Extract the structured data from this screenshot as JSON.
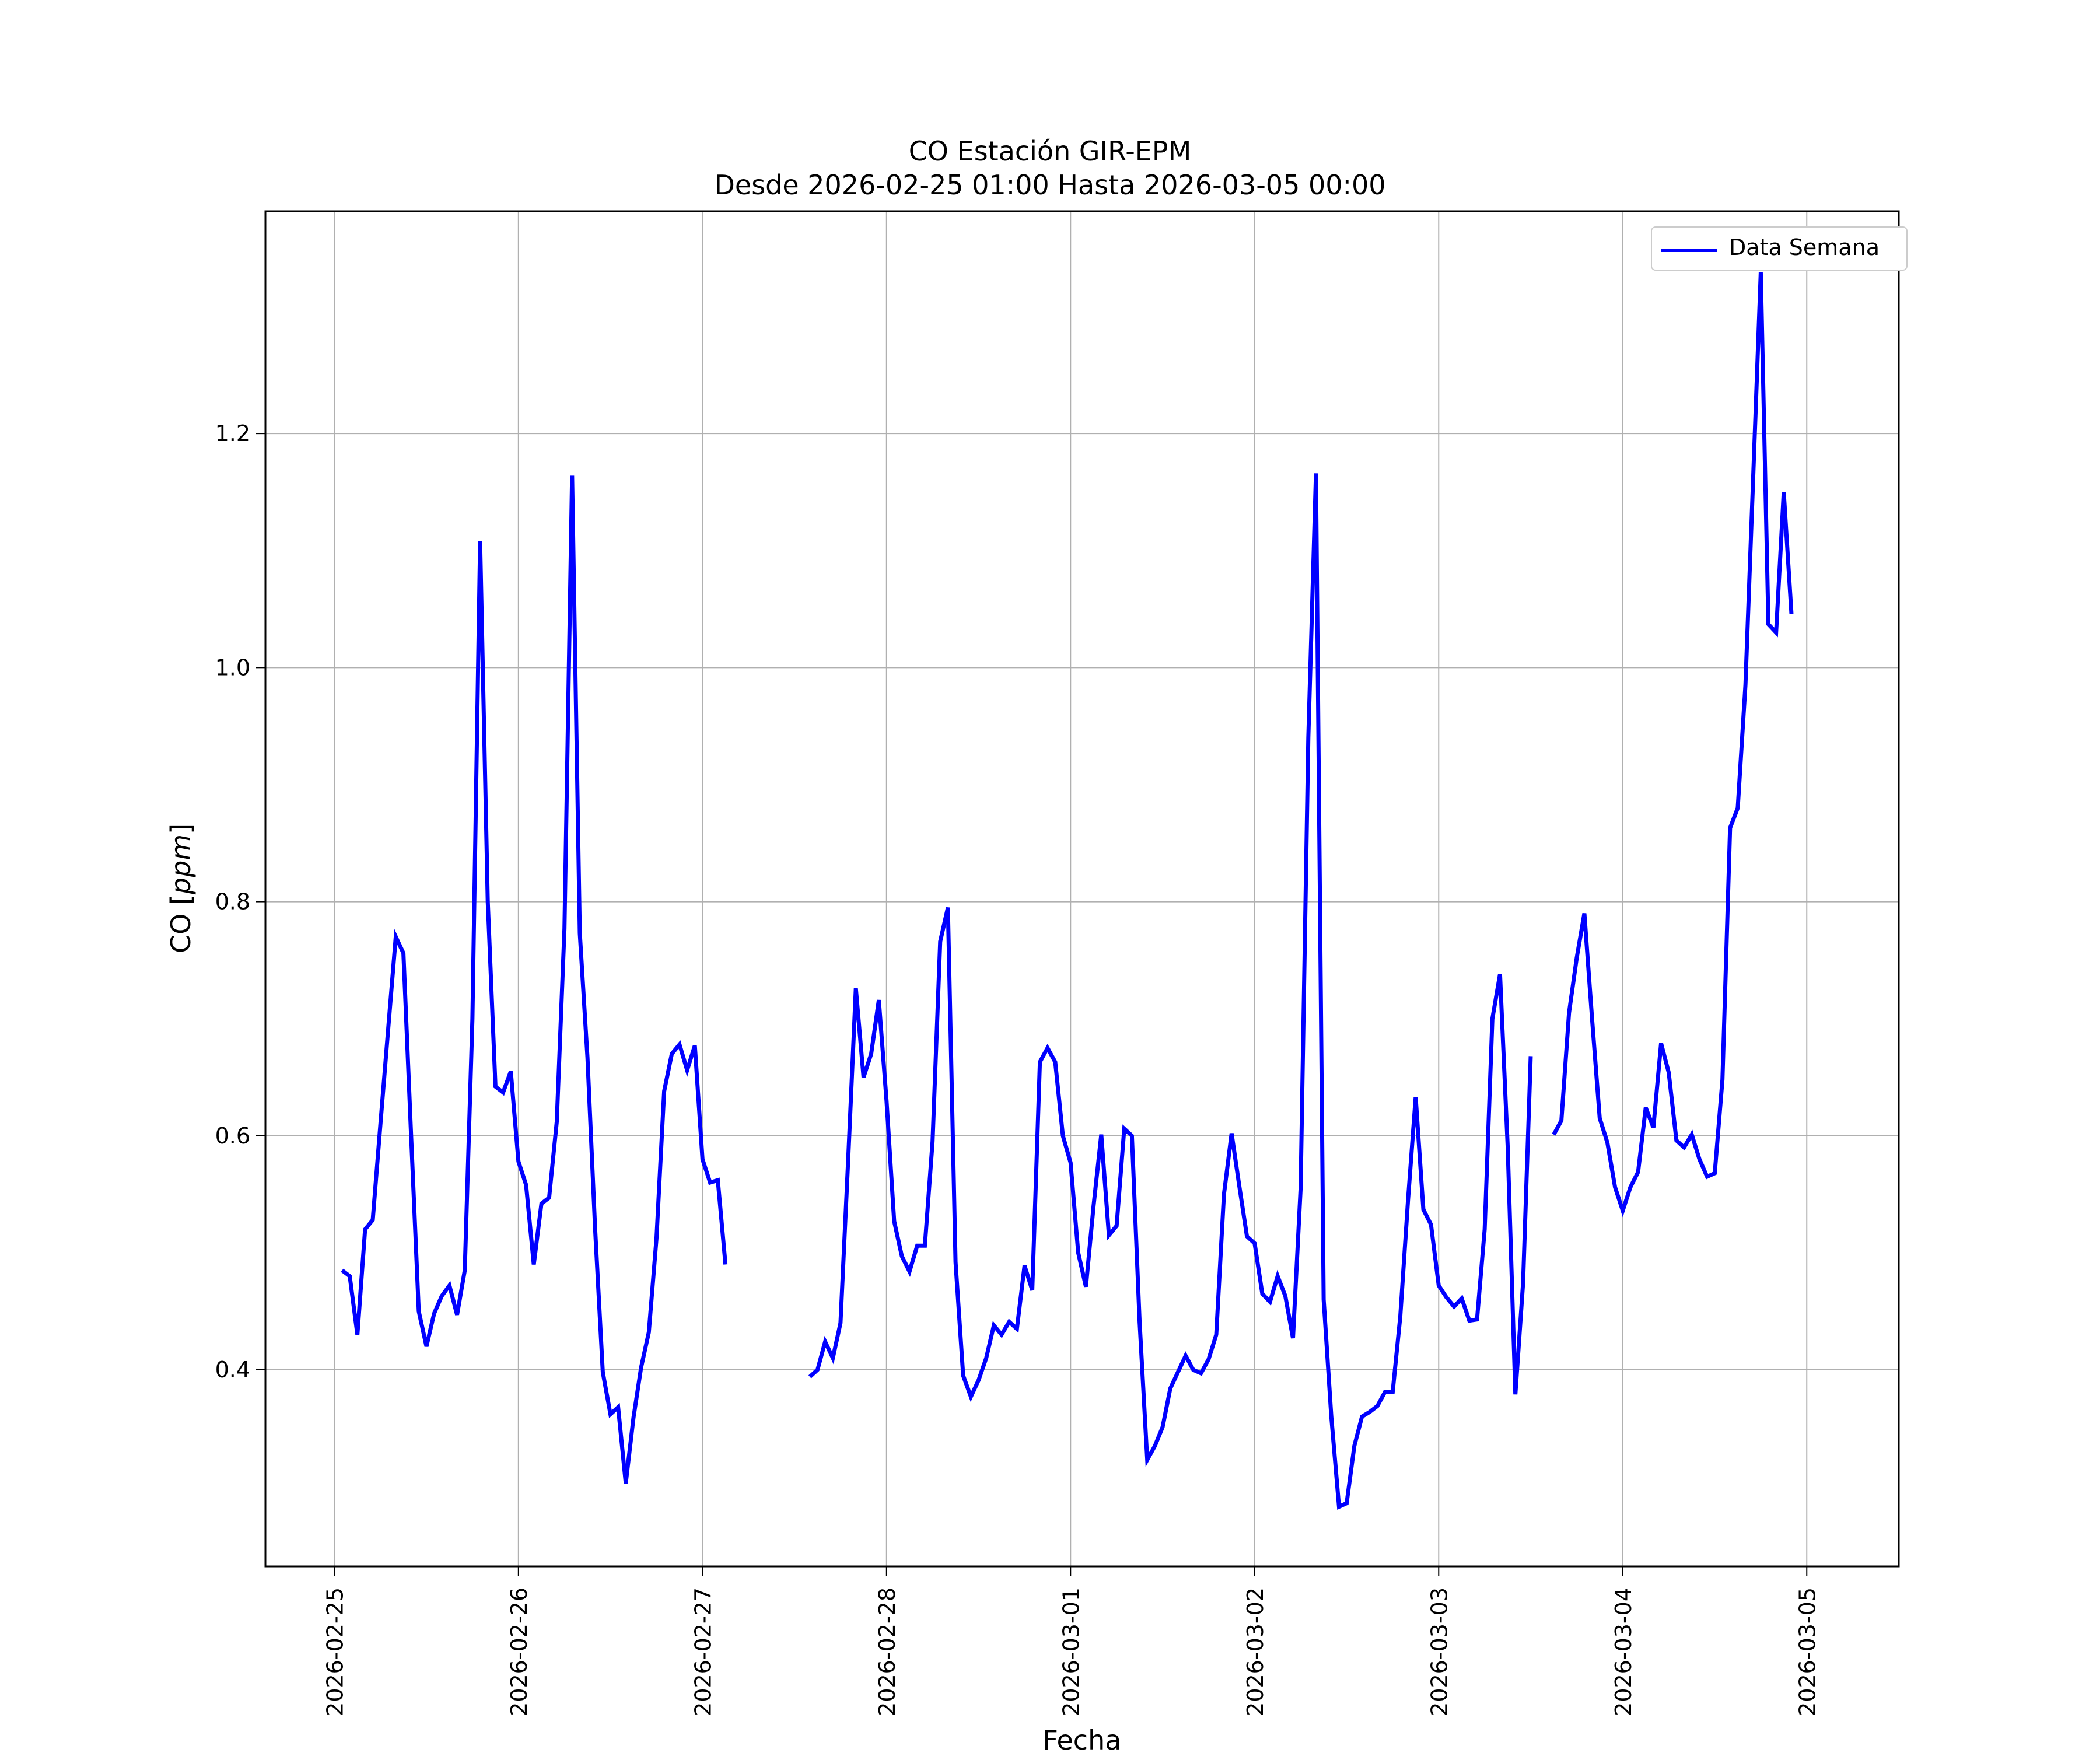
{
  "chart_data": {
    "type": "line",
    "title": "CO Estación GIR-EPM",
    "subtitle": "Desde 2026-02-25 01:00 Hasta 2026-03-05 00:00",
    "xlabel": "Fecha",
    "ylabel_prefix": "CO [",
    "ylabel_unit": "ppm",
    "ylabel_suffix": "]",
    "x_tick_labels": [
      "2026-02-25",
      "2026-02-26",
      "2026-02-27",
      "2026-02-28",
      "2026-03-01",
      "2026-03-02",
      "2026-03-03",
      "2026-03-04",
      "2026-03-05"
    ],
    "y_ticks": [
      0.4,
      0.6,
      0.8,
      1.0,
      1.2
    ],
    "y_tick_labels": [
      "0.4",
      "0.6",
      "0.8",
      "1.0",
      "1.2"
    ],
    "xlim": [
      "2026-02-24 15:00",
      "2026-03-05 12:00"
    ],
    "ylim": [
      0.232,
      1.39
    ],
    "grid": true,
    "legend_position": "upper right",
    "colors": {
      "line": "#0000ff",
      "grid": "#b0b0b0"
    },
    "series": [
      {
        "name": "Data Semana",
        "segments": [
          [
            [
              "2026-02-25 01:00",
              0.485
            ],
            [
              "2026-02-25 02:00",
              0.48
            ],
            [
              "2026-02-25 03:00",
              0.43
            ],
            [
              "2026-02-25 04:00",
              0.52
            ],
            [
              "2026-02-25 05:00",
              0.528
            ],
            [
              "2026-02-25 06:00",
              0.61
            ],
            [
              "2026-02-25 07:00",
              0.69
            ],
            [
              "2026-02-25 08:00",
              0.77
            ],
            [
              "2026-02-25 09:00",
              0.756
            ],
            [
              "2026-02-25 10:00",
              0.6
            ],
            [
              "2026-02-25 11:00",
              0.45
            ],
            [
              "2026-02-25 12:00",
              0.42
            ],
            [
              "2026-02-25 13:00",
              0.448
            ],
            [
              "2026-02-25 14:00",
              0.463
            ],
            [
              "2026-02-25 15:00",
              0.472
            ],
            [
              "2026-02-25 16:00",
              0.447
            ],
            [
              "2026-02-25 17:00",
              0.485
            ],
            [
              "2026-02-25 18:00",
              0.7
            ],
            [
              "2026-02-25 19:00",
              1.108
            ],
            [
              "2026-02-25 20:00",
              0.8
            ],
            [
              "2026-02-25 21:00",
              0.642
            ],
            [
              "2026-02-25 22:00",
              0.637
            ],
            [
              "2026-02-25 23:00",
              0.655
            ],
            [
              "2026-02-26 00:00",
              0.578
            ],
            [
              "2026-02-26 01:00",
              0.558
            ],
            [
              "2026-02-26 02:00",
              0.49
            ],
            [
              "2026-02-26 03:00",
              0.542
            ],
            [
              "2026-02-26 04:00",
              0.547
            ],
            [
              "2026-02-26 05:00",
              0.612
            ],
            [
              "2026-02-26 06:00",
              0.777
            ],
            [
              "2026-02-26 07:00",
              1.164
            ],
            [
              "2026-02-26 08:00",
              0.773
            ],
            [
              "2026-02-26 09:00",
              0.667
            ],
            [
              "2026-02-26 10:00",
              0.52
            ],
            [
              "2026-02-26 11:00",
              0.398
            ],
            [
              "2026-02-26 12:00",
              0.362
            ],
            [
              "2026-02-26 13:00",
              0.368
            ],
            [
              "2026-02-26 14:00",
              0.303
            ],
            [
              "2026-02-26 15:00",
              0.359
            ],
            [
              "2026-02-26 16:00",
              0.402
            ],
            [
              "2026-02-26 17:00",
              0.432
            ],
            [
              "2026-02-26 18:00",
              0.512
            ],
            [
              "2026-02-26 19:00",
              0.638
            ],
            [
              "2026-02-26 20:00",
              0.67
            ],
            [
              "2026-02-26 21:00",
              0.678
            ],
            [
              "2026-02-26 22:00",
              0.656
            ],
            [
              "2026-02-26 23:00",
              0.677
            ],
            [
              "2026-02-27 00:00",
              0.58
            ],
            [
              "2026-02-27 01:00",
              0.56
            ],
            [
              "2026-02-27 02:00",
              0.562
            ],
            [
              "2026-02-27 03:00",
              0.49
            ]
          ],
          [
            [
              "2026-02-27 14:00",
              0.394
            ],
            [
              "2026-02-27 15:00",
              0.4
            ],
            [
              "2026-02-27 16:00",
              0.424
            ],
            [
              "2026-02-27 17:00",
              0.41
            ],
            [
              "2026-02-27 18:00",
              0.44
            ],
            [
              "2026-02-27 19:00",
              0.58
            ],
            [
              "2026-02-27 20:00",
              0.726
            ],
            [
              "2026-02-27 21:00",
              0.65
            ],
            [
              "2026-02-27 22:00",
              0.67
            ],
            [
              "2026-02-27 23:00",
              0.716
            ],
            [
              "2026-02-28 00:00",
              0.63
            ],
            [
              "2026-02-28 01:00",
              0.527
            ],
            [
              "2026-02-28 02:00",
              0.497
            ],
            [
              "2026-02-28 03:00",
              0.484
            ],
            [
              "2026-02-28 04:00",
              0.506
            ],
            [
              "2026-02-28 05:00",
              0.506
            ],
            [
              "2026-02-28 06:00",
              0.595
            ],
            [
              "2026-02-28 07:00",
              0.766
            ],
            [
              "2026-02-28 08:00",
              0.795
            ],
            [
              "2026-02-28 09:00",
              0.492
            ],
            [
              "2026-02-28 10:00",
              0.395
            ],
            [
              "2026-02-28 11:00",
              0.377
            ],
            [
              "2026-02-28 12:00",
              0.391
            ],
            [
              "2026-02-28 13:00",
              0.41
            ],
            [
              "2026-02-28 14:00",
              0.438
            ],
            [
              "2026-02-28 15:00",
              0.43
            ],
            [
              "2026-02-28 16:00",
              0.441
            ],
            [
              "2026-02-28 17:00",
              0.435
            ],
            [
              "2026-02-28 18:00",
              0.489
            ],
            [
              "2026-02-28 19:00",
              0.468
            ],
            [
              "2026-02-28 20:00",
              0.663
            ],
            [
              "2026-02-28 21:00",
              0.675
            ],
            [
              "2026-02-28 22:00",
              0.663
            ],
            [
              "2026-02-28 23:00",
              0.6
            ],
            [
              "2026-03-01 00:00",
              0.577
            ],
            [
              "2026-03-01 01:00",
              0.5
            ],
            [
              "2026-03-01 02:00",
              0.471
            ],
            [
              "2026-03-01 03:00",
              0.54
            ],
            [
              "2026-03-01 04:00",
              0.601
            ],
            [
              "2026-03-01 05:00",
              0.515
            ],
            [
              "2026-03-01 06:00",
              0.523
            ],
            [
              "2026-03-01 07:00",
              0.606
            ],
            [
              "2026-03-01 08:00",
              0.6
            ],
            [
              "2026-03-01 09:00",
              0.441
            ],
            [
              "2026-03-01 10:00",
              0.323
            ],
            [
              "2026-03-01 11:00",
              0.335
            ],
            [
              "2026-03-01 12:00",
              0.351
            ],
            [
              "2026-03-01 13:00",
              0.384
            ],
            [
              "2026-03-01 14:00",
              0.398
            ],
            [
              "2026-03-01 15:00",
              0.412
            ],
            [
              "2026-03-01 16:00",
              0.4
            ],
            [
              "2026-03-01 17:00",
              0.397
            ],
            [
              "2026-03-01 18:00",
              0.409
            ],
            [
              "2026-03-01 19:00",
              0.43
            ],
            [
              "2026-03-01 20:00",
              0.55
            ],
            [
              "2026-03-01 21:00",
              0.602
            ],
            [
              "2026-03-01 22:00",
              0.557
            ],
            [
              "2026-03-01 23:00",
              0.514
            ],
            [
              "2026-03-02 00:00",
              0.508
            ],
            [
              "2026-03-02 01:00",
              0.465
            ],
            [
              "2026-03-02 02:00",
              0.458
            ],
            [
              "2026-03-02 03:00",
              0.48
            ],
            [
              "2026-03-02 04:00",
              0.463
            ],
            [
              "2026-03-02 05:00",
              0.427
            ],
            [
              "2026-03-02 06:00",
              0.555
            ],
            [
              "2026-03-02 07:00",
              0.94
            ],
            [
              "2026-03-02 08:00",
              1.166
            ],
            [
              "2026-03-02 09:00",
              0.46
            ],
            [
              "2026-03-02 10:00",
              0.36
            ],
            [
              "2026-03-02 11:00",
              0.283
            ],
            [
              "2026-03-02 12:00",
              0.286
            ],
            [
              "2026-03-02 13:00",
              0.335
            ],
            [
              "2026-03-02 14:00",
              0.36
            ],
            [
              "2026-03-02 15:00",
              0.364
            ],
            [
              "2026-03-02 16:00",
              0.369
            ],
            [
              "2026-03-02 17:00",
              0.381
            ],
            [
              "2026-03-02 18:00",
              0.381
            ],
            [
              "2026-03-02 19:00",
              0.446
            ],
            [
              "2026-03-02 20:00",
              0.545
            ],
            [
              "2026-03-02 21:00",
              0.633
            ],
            [
              "2026-03-02 22:00",
              0.537
            ],
            [
              "2026-03-02 23:00",
              0.524
            ],
            [
              "2026-03-03 00:00",
              0.472
            ],
            [
              "2026-03-03 01:00",
              0.462
            ],
            [
              "2026-03-03 02:00",
              0.454
            ],
            [
              "2026-03-03 03:00",
              0.461
            ],
            [
              "2026-03-03 04:00",
              0.442
            ],
            [
              "2026-03-03 05:00",
              0.443
            ],
            [
              "2026-03-03 06:00",
              0.52
            ],
            [
              "2026-03-03 07:00",
              0.7
            ],
            [
              "2026-03-03 08:00",
              0.738
            ],
            [
              "2026-03-03 09:00",
              0.59
            ],
            [
              "2026-03-03 10:00",
              0.379
            ],
            [
              "2026-03-03 11:00",
              0.474
            ],
            [
              "2026-03-03 12:00",
              0.668
            ]
          ],
          [
            [
              "2026-03-03 15:00",
              0.601
            ],
            [
              "2026-03-03 16:00",
              0.613
            ],
            [
              "2026-03-03 17:00",
              0.705
            ],
            [
              "2026-03-03 18:00",
              0.752
            ],
            [
              "2026-03-03 19:00",
              0.79
            ],
            [
              "2026-03-03 20:00",
              0.7
            ],
            [
              "2026-03-03 21:00",
              0.615
            ],
            [
              "2026-03-03 22:00",
              0.594
            ],
            [
              "2026-03-03 23:00",
              0.556
            ],
            [
              "2026-03-04 00:00",
              0.536
            ],
            [
              "2026-03-04 01:00",
              0.556
            ],
            [
              "2026-03-04 02:00",
              0.569
            ],
            [
              "2026-03-04 03:00",
              0.624
            ],
            [
              "2026-03-04 04:00",
              0.607
            ],
            [
              "2026-03-04 05:00",
              0.679
            ],
            [
              "2026-03-04 06:00",
              0.654
            ],
            [
              "2026-03-04 07:00",
              0.596
            ],
            [
              "2026-03-04 08:00",
              0.59
            ],
            [
              "2026-03-04 09:00",
              0.601
            ],
            [
              "2026-03-04 10:00",
              0.58
            ],
            [
              "2026-03-04 11:00",
              0.565
            ],
            [
              "2026-03-04 12:00",
              0.568
            ],
            [
              "2026-03-04 13:00",
              0.648
            ],
            [
              "2026-03-04 14:00",
              0.863
            ],
            [
              "2026-03-04 15:00",
              0.88
            ],
            [
              "2026-03-04 16:00",
              0.985
            ],
            [
              "2026-03-04 17:00",
              1.16
            ],
            [
              "2026-03-04 18:00",
              1.338
            ],
            [
              "2026-03-04 19:00",
              1.037
            ],
            [
              "2026-03-04 20:00",
              1.03
            ],
            [
              "2026-03-04 21:00",
              1.15
            ],
            [
              "2026-03-04 22:00",
              1.046
            ]
          ]
        ]
      }
    ]
  }
}
